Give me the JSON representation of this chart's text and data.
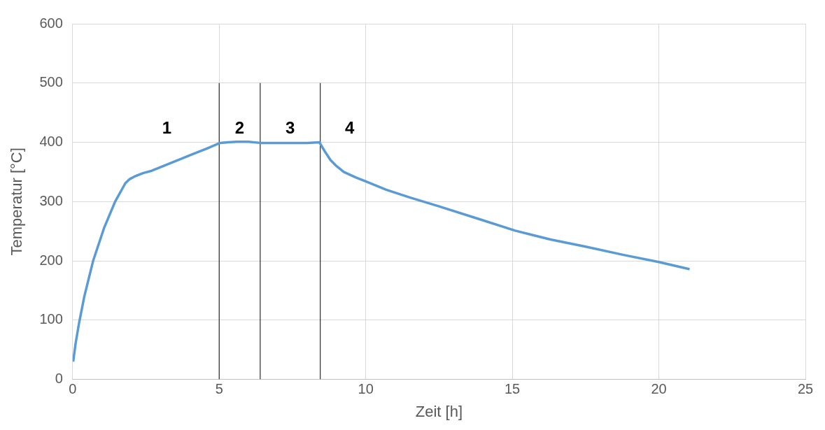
{
  "chart_data": {
    "type": "line",
    "xlabel": "Zeit [h]",
    "ylabel": "Temperatur [°C]",
    "series": [
      {
        "color": "#5b9bd5",
        "x": [
          0.02,
          0.1,
          0.22,
          0.4,
          0.7,
          1.07,
          1.45,
          1.8,
          1.95,
          2.1,
          2.4,
          2.7,
          3.1,
          3.6,
          4.1,
          4.6,
          5.03,
          5.3,
          5.6,
          6.0,
          6.4,
          7.0,
          8.0,
          8.42,
          8.6,
          8.8,
          9.0,
          9.25,
          9.6,
          10.0,
          10.7,
          11.5,
          12.5,
          13.9,
          15.1,
          16.3,
          17.5,
          18.8,
          20.0,
          21.05
        ],
        "values": [
          30,
          60,
          95,
          140,
          200,
          255,
          300,
          331,
          338,
          342,
          348,
          352,
          360,
          370,
          380,
          390,
          399,
          400,
          401,
          401,
          399,
          399,
          399,
          400,
          385,
          370,
          360,
          350,
          342,
          334,
          320,
          307,
          292,
          270,
          251,
          236,
          224,
          210,
          198,
          186
        ]
      },
      {
        "type": "line",
        "color": "#000000",
        "x": [
          5,
          5
        ],
        "values": [
          0,
          500
        ]
      },
      {
        "type": "line",
        "color": "#000000",
        "x": [
          6.4,
          6.4
        ],
        "values": [
          0,
          500
        ]
      },
      {
        "type": "line",
        "color": "#000000",
        "x": [
          8.45,
          8.45
        ],
        "values": [
          0,
          500
        ]
      }
    ],
    "xlim": [
      0,
      25
    ],
    "xticks": [
      0,
      5,
      10,
      15,
      20,
      25
    ],
    "ylim": [
      0,
      600
    ],
    "yticks": [
      0,
      100,
      200,
      300,
      400,
      500,
      600
    ],
    "grid": true,
    "marker": "none",
    "line_style": "solid",
    "legend": false,
    "annotations": [
      "1",
      "2",
      "3",
      "4"
    ]
  }
}
